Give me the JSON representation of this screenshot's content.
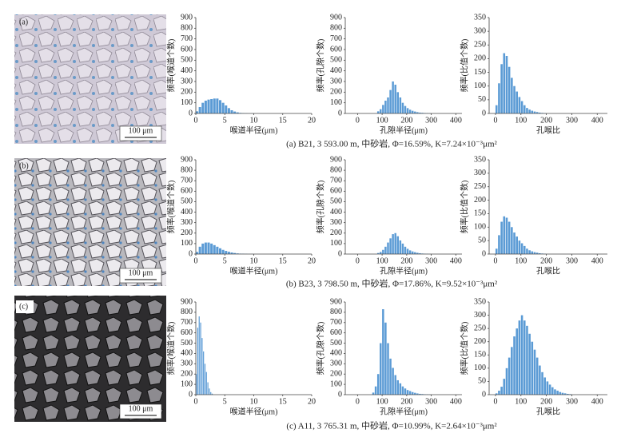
{
  "panels": [
    {
      "label": "(a)",
      "scale": "100 μm",
      "caption": "(a) B21, 3 593.00 m, 中砂岩, Φ=16.59%, K=7.24×10⁻³μm²"
    },
    {
      "label": "(b)",
      "scale": "100 μm",
      "caption": "(b) B23, 3 798.50 m, 中砂岩, Φ=17.86%, K=9.52×10⁻³μm²"
    },
    {
      "label": "(c)",
      "scale": "100 μm",
      "caption": "(c) A11, 3 765.31 m, 中砂岩, Φ=10.99%, K=2.64×10⁻³μm²"
    }
  ],
  "chart_data": [
    {
      "type": "histogram",
      "xlabel": "喉道半径(μm)",
      "ylabel": "频率(喉道个数)",
      "color": "#5b9bd5",
      "bins": [
        0,
        0.5,
        1,
        1.5,
        2,
        2.5,
        3,
        3.5,
        4,
        4.5,
        5,
        5.5,
        6,
        6.5,
        7,
        7.5,
        8,
        8.5,
        9,
        9.5,
        10
      ],
      "counts": [
        20,
        60,
        100,
        120,
        130,
        135,
        140,
        140,
        125,
        100,
        75,
        50,
        30,
        18,
        10,
        5,
        3,
        2,
        1,
        1
      ],
      "xlim": [
        0,
        20
      ],
      "xticks": [
        0,
        5,
        10,
        15,
        20
      ],
      "ylim": [
        0,
        900
      ],
      "yticks": [
        0,
        100,
        200,
        300,
        400,
        500,
        600,
        700,
        800,
        900
      ]
    },
    {
      "type": "histogram",
      "xlabel": "孔隙半径(μm)",
      "ylabel": "频率(孔隙个数)",
      "color": "#5b9bd5",
      "bins": [
        80,
        90,
        100,
        110,
        120,
        130,
        140,
        150,
        160,
        170,
        180,
        190,
        200,
        210,
        220,
        230,
        240,
        250,
        260,
        270,
        280,
        290,
        300
      ],
      "counts": [
        20,
        40,
        80,
        120,
        150,
        220,
        300,
        270,
        200,
        150,
        100,
        70,
        50,
        35,
        25,
        18,
        12,
        8,
        6,
        4,
        3,
        2
      ],
      "xlim": [
        -50,
        425
      ],
      "xticks": [
        0,
        100,
        200,
        300,
        400
      ],
      "ylim": [
        0,
        900
      ],
      "yticks": [
        0,
        100,
        200,
        300,
        400,
        500,
        600,
        700,
        800,
        900
      ]
    },
    {
      "type": "histogram",
      "xlabel": "孔喉比",
      "ylabel": "频率(比值个数)",
      "color": "#5b9bd5",
      "bins": [
        0,
        10,
        20,
        30,
        40,
        50,
        60,
        70,
        80,
        90,
        100,
        110,
        120,
        130,
        140,
        150,
        160,
        170,
        180,
        190,
        200
      ],
      "counts": [
        30,
        110,
        180,
        220,
        210,
        170,
        130,
        100,
        80,
        60,
        45,
        30,
        20,
        14,
        10,
        7,
        5,
        3,
        2,
        1
      ],
      "xlim": [
        -25,
        440
      ],
      "xticks": [
        0,
        100,
        200,
        300,
        400
      ],
      "ylim": [
        0,
        350
      ],
      "yticks": [
        0,
        50,
        100,
        150,
        200,
        250,
        300,
        350
      ]
    },
    {
      "type": "histogram",
      "xlabel": "喉道半径(μm)",
      "ylabel": "频率(喉道个数)",
      "color": "#5b9bd5",
      "bins": [
        0,
        0.5,
        1,
        1.5,
        2,
        2.5,
        3,
        3.5,
        4,
        4.5,
        5,
        5.5,
        6,
        6.5,
        7,
        7.5,
        8,
        8.5,
        9,
        9.5,
        10
      ],
      "counts": [
        20,
        70,
        100,
        110,
        110,
        100,
        85,
        70,
        55,
        40,
        30,
        22,
        15,
        10,
        6,
        4,
        3,
        2,
        1,
        1
      ],
      "xlim": [
        0,
        20
      ],
      "xticks": [
        0,
        5,
        10,
        15,
        20
      ],
      "ylim": [
        0,
        900
      ],
      "yticks": [
        0,
        100,
        200,
        300,
        400,
        500,
        600,
        700,
        800,
        900
      ]
    },
    {
      "type": "histogram",
      "xlabel": "孔隙半径(μm)",
      "ylabel": "频率(孔隙个数)",
      "color": "#5b9bd5",
      "bins": [
        80,
        90,
        100,
        110,
        120,
        130,
        140,
        150,
        160,
        170,
        180,
        190,
        200,
        210,
        220,
        230,
        240,
        250,
        260,
        270,
        280,
        290,
        300
      ],
      "counts": [
        10,
        20,
        40,
        70,
        110,
        150,
        190,
        200,
        170,
        130,
        100,
        70,
        50,
        35,
        25,
        18,
        12,
        8,
        5,
        3,
        2,
        1
      ],
      "xlim": [
        -50,
        425
      ],
      "xticks": [
        0,
        100,
        200,
        300,
        400
      ],
      "ylim": [
        0,
        900
      ],
      "yticks": [
        0,
        100,
        200,
        300,
        400,
        500,
        600,
        700,
        800,
        900
      ]
    },
    {
      "type": "histogram",
      "xlabel": "孔喉比",
      "ylabel": "频率(比值个数)",
      "color": "#5b9bd5",
      "bins": [
        0,
        10,
        20,
        30,
        40,
        50,
        60,
        70,
        80,
        90,
        100,
        110,
        120,
        130,
        140,
        150,
        160,
        170,
        180,
        190,
        200
      ],
      "counts": [
        20,
        70,
        120,
        140,
        135,
        120,
        100,
        80,
        65,
        50,
        40,
        30,
        20,
        14,
        10,
        7,
        5,
        3,
        2,
        1
      ],
      "xlim": [
        -25,
        440
      ],
      "xticks": [
        0,
        100,
        200,
        300,
        400
      ],
      "ylim": [
        0,
        350
      ],
      "yticks": [
        0,
        50,
        100,
        150,
        200,
        250,
        300,
        350
      ]
    },
    {
      "type": "histogram",
      "xlabel": "喉道半径(μm)",
      "ylabel": "频率(喉道个数)",
      "color": "#5b9bd5",
      "bins": [
        0,
        0.25,
        0.5,
        0.75,
        1,
        1.25,
        1.5,
        1.75,
        2,
        2.25,
        2.5,
        2.75,
        3
      ],
      "counts": [
        200,
        650,
        760,
        700,
        550,
        420,
        300,
        220,
        120,
        60,
        25,
        10
      ],
      "xlim": [
        0,
        20
      ],
      "xticks": [
        0,
        5,
        10,
        15,
        20
      ],
      "ylim": [
        0,
        900
      ],
      "yticks": [
        0,
        100,
        200,
        300,
        400,
        500,
        600,
        700,
        800,
        900
      ]
    },
    {
      "type": "histogram",
      "xlabel": "孔隙半径(μm)",
      "ylabel": "频率(孔隙个数)",
      "color": "#5b9bd5",
      "bins": [
        60,
        70,
        80,
        90,
        100,
        110,
        120,
        130,
        140,
        150,
        160,
        170,
        180,
        190,
        200,
        210,
        220,
        230,
        240,
        250,
        260,
        270,
        280,
        290,
        300
      ],
      "counts": [
        20,
        80,
        200,
        500,
        830,
        700,
        500,
        350,
        260,
        190,
        140,
        110,
        80,
        60,
        45,
        35,
        25,
        18,
        12,
        8,
        6,
        4,
        3,
        2
      ],
      "xlim": [
        -50,
        425
      ],
      "xticks": [
        0,
        100,
        200,
        300,
        400
      ],
      "ylim": [
        0,
        900
      ],
      "yticks": [
        0,
        100,
        200,
        300,
        400,
        500,
        600,
        700,
        800,
        900
      ]
    },
    {
      "type": "histogram",
      "xlabel": "孔喉比",
      "ylabel": "频率(比值个数)",
      "color": "#5b9bd5",
      "bins": [
        0,
        10,
        20,
        30,
        40,
        50,
        60,
        70,
        80,
        90,
        100,
        110,
        120,
        130,
        140,
        150,
        160,
        170,
        180,
        190,
        200,
        210,
        220,
        230,
        240,
        250,
        260,
        270,
        280,
        290,
        300
      ],
      "counts": [
        5,
        15,
        30,
        60,
        100,
        140,
        180,
        220,
        250,
        280,
        300,
        280,
        260,
        230,
        200,
        170,
        140,
        110,
        85,
        65,
        50,
        38,
        28,
        20,
        15,
        10,
        7,
        5,
        3,
        2
      ],
      "xlim": [
        -25,
        440
      ],
      "xticks": [
        0,
        100,
        200,
        300,
        400
      ],
      "ylim": [
        0,
        350
      ],
      "yticks": [
        0,
        50,
        100,
        150,
        200,
        250,
        300,
        350
      ]
    }
  ]
}
